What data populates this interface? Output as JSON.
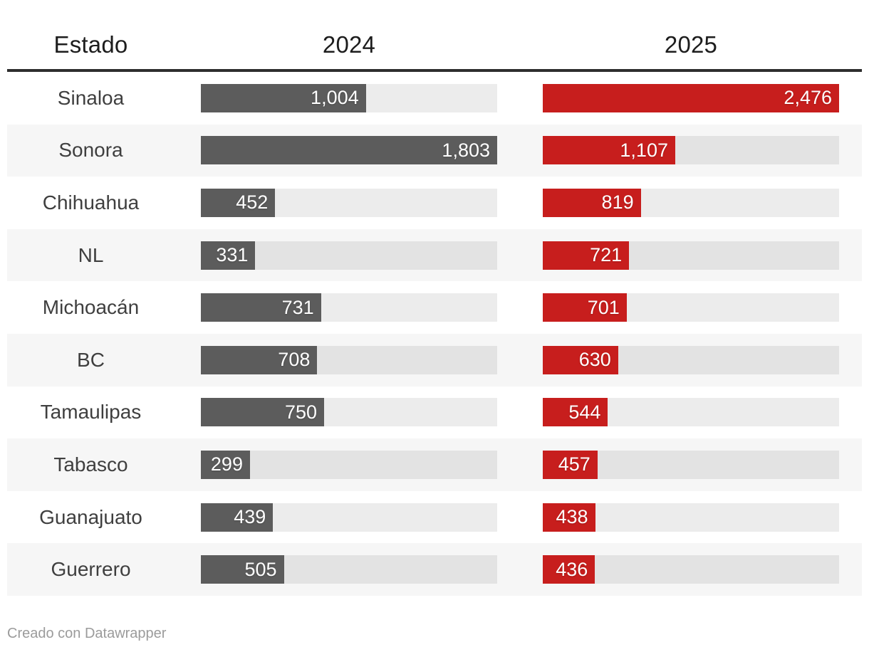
{
  "header": {
    "estado": "Estado",
    "year1": "2024",
    "year2": "2025"
  },
  "footer": {
    "credit": "Creado con Datawrapper"
  },
  "colors": {
    "bar_2024": "#5c5c5c",
    "bar_2025": "#c71e1d",
    "bar_track": "#e9e9e9",
    "row_stripe": "#f6f6f6",
    "top_rule": "#2e2e2e",
    "header_text": "#1d1d1d",
    "state_label_text": "#3f3f3f",
    "bar_value_text": "#ffffff",
    "credit_text": "#9b9b9b"
  },
  "chart_data": {
    "type": "bar",
    "layout": "table-with-horizontal-bars",
    "title": "",
    "column_header": "Estado",
    "categories": [
      "Sinaloa",
      "Sonora",
      "Chihuahua",
      "NL",
      "Michoacán",
      "BC",
      "Tamaulipas",
      "Tabasco",
      "Guanajuato",
      "Guerrero"
    ],
    "series": [
      {
        "name": "2024",
        "values": [
          1004,
          1803,
          452,
          331,
          731,
          708,
          750,
          299,
          439,
          505
        ],
        "value_labels": [
          "1,004",
          "1,803",
          "452",
          "331",
          "731",
          "708",
          "750",
          "299",
          "439",
          "505"
        ],
        "bar_color": "#5c5c5c",
        "axis_max": 1803
      },
      {
        "name": "2025",
        "values": [
          2476,
          1107,
          819,
          721,
          701,
          630,
          544,
          457,
          438,
          436
        ],
        "value_labels": [
          "2,476",
          "1,107",
          "819",
          "721",
          "701",
          "630",
          "544",
          "457",
          "438",
          "436"
        ],
        "bar_color": "#c71e1d",
        "axis_max": 2476
      }
    ],
    "scaling_note": "each year column is scaled independently to its own maximum value",
    "grid": "off",
    "legend": "none"
  }
}
